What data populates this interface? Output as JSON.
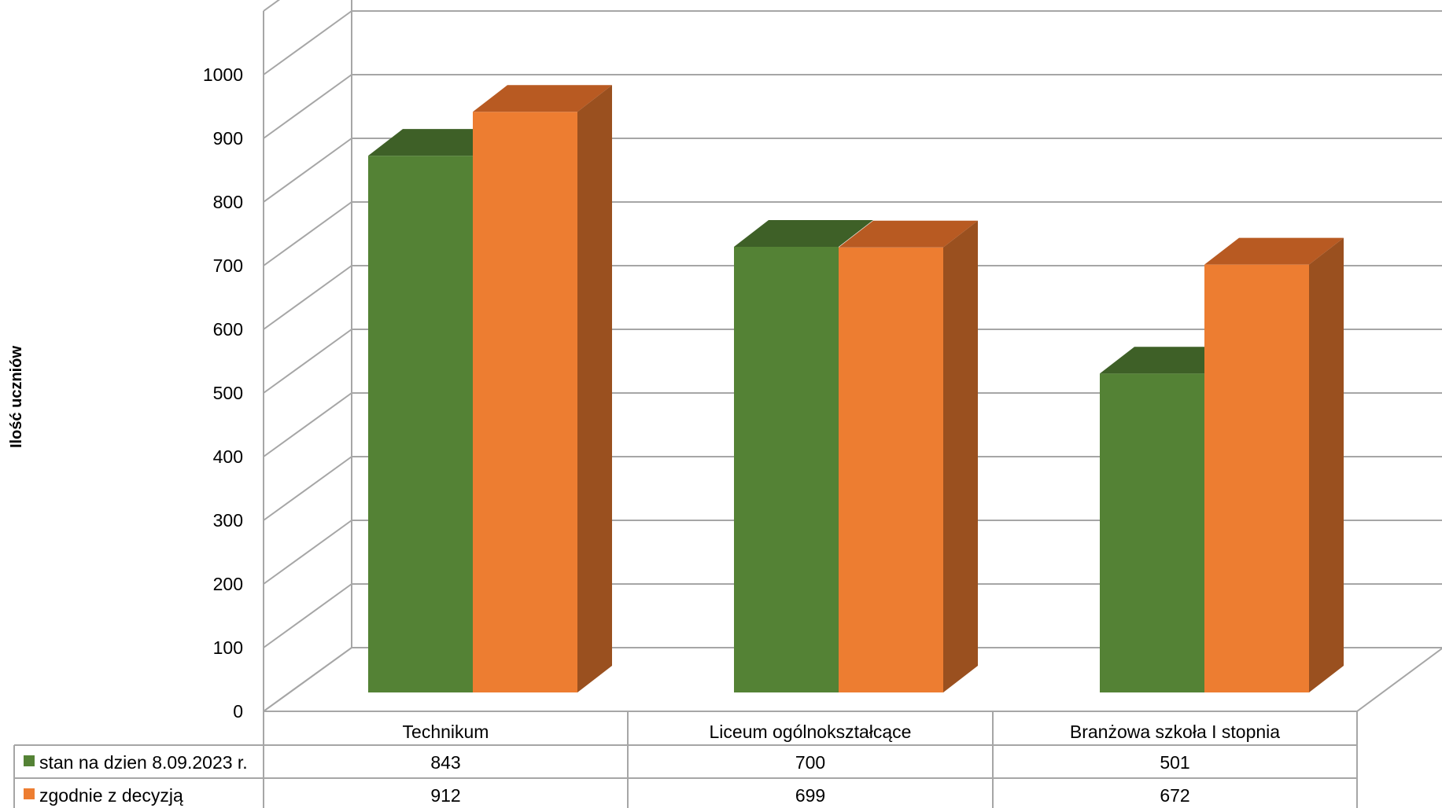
{
  "chart_data": {
    "type": "bar",
    "title": "",
    "xlabel": "",
    "ylabel": "Ilość uczniów",
    "ylim": [
      0,
      1000
    ],
    "y_ticks": [
      "0",
      "100",
      "200",
      "300",
      "400",
      "500",
      "600",
      "700",
      "800",
      "900",
      "1000"
    ],
    "grid": true,
    "style": "3d-clustered-column-with-data-table",
    "categories": [
      "Technikum",
      "Liceum ogólnokształcące",
      "Branżowa szkoła I stopnia"
    ],
    "series": [
      {
        "name": "stan na dzien 8.09.2023 r.",
        "values": [
          843,
          700,
          501
        ],
        "value_labels": [
          "843",
          "700",
          "501"
        ],
        "color": "#548235",
        "top_color": "#3e6027"
      },
      {
        "name": "zgodnie z decyzją",
        "values": [
          912,
          699,
          672
        ],
        "value_labels": [
          "912",
          "699",
          "672"
        ],
        "color": "#ed7d31",
        "top_color": "#b85a22",
        "side_color": "#9a501f"
      }
    ]
  }
}
